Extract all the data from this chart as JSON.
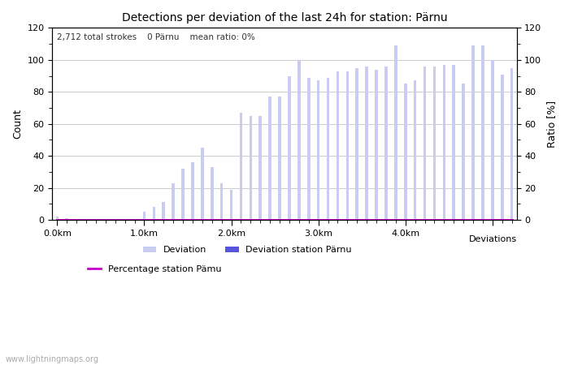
{
  "title": "Detections per deviation of the last 24h for station: Pärnu",
  "xlabel_right": "Deviations",
  "ylabel_left": "Count",
  "ylabel_right": "Ratio [%]",
  "annotation": "2,712 total strokes    0 Pärnu    mean ratio: 0%",
  "ylim": [
    0,
    120
  ],
  "bar_color_light": "#c8ccf0",
  "bar_color_dark": "#5555dd",
  "line_color": "#cc00cc",
  "background_color": "#ffffff",
  "grid_color": "#cccccc",
  "watermark": "www.lightningmaps.org",
  "legend_label_deviation": "Deviation",
  "legend_label_station": "Deviation station Pärnu",
  "legend_label_pct": "Percentage station Pämu",
  "bar_heights": [
    2,
    1,
    0,
    0,
    0,
    0,
    0,
    0,
    0,
    5,
    8,
    11,
    23,
    32,
    36,
    45,
    33,
    23,
    19,
    67,
    65,
    65,
    77,
    77,
    90,
    100,
    89,
    87,
    89,
    93,
    93,
    95,
    96,
    94,
    96,
    109,
    85,
    87,
    96,
    96,
    97,
    97,
    85,
    109,
    109,
    100,
    91,
    95
  ],
  "station_bar_heights": [
    0,
    0,
    0,
    0,
    0,
    0,
    0,
    0,
    0,
    0,
    0,
    0,
    0,
    0,
    0,
    0,
    0,
    0,
    0,
    0,
    0,
    0,
    0,
    0,
    0,
    0,
    0,
    0,
    0,
    0,
    0,
    0,
    0,
    0,
    0,
    0,
    0,
    0,
    0,
    0,
    0,
    0,
    0,
    0,
    0,
    0,
    0,
    0
  ],
  "xtick_positions": [
    0,
    9,
    18,
    27,
    36,
    45
  ],
  "xtick_labels": [
    "0.0km",
    "1.0km",
    "2.0km",
    "3.0km",
    "4.0km",
    ""
  ],
  "bar_width": 0.3
}
